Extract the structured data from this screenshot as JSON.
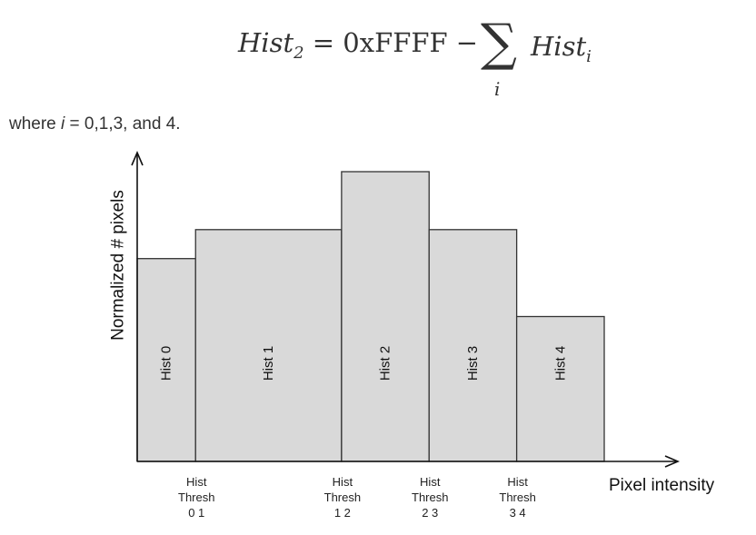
{
  "equation": {
    "lhs": "Hist",
    "lhs_sub": "2",
    "equals": "= 0xFFFF −",
    "sigma": "∑",
    "sigma_sub": "i",
    "rhs": "Hist",
    "rhs_sub": "i"
  },
  "where_text": {
    "prefix": "where ",
    "var": "i",
    "suffix": " = 0,1,3, and 4."
  },
  "chart_data": {
    "type": "bar",
    "ylabel": "Normalized # pixels",
    "xlabel": "Pixel intensity",
    "bars": [
      {
        "label": "Hist 0",
        "x_start": 0,
        "x_end": 1,
        "value": 0.7
      },
      {
        "label": "Hist 1",
        "x_start": 1,
        "x_end": 3.5,
        "value": 0.8
      },
      {
        "label": "Hist 2",
        "x_start": 3.5,
        "x_end": 5,
        "value": 1.0
      },
      {
        "label": "Hist 3",
        "x_start": 5,
        "x_end": 6.5,
        "value": 0.8
      },
      {
        "label": "Hist 4",
        "x_start": 6.5,
        "x_end": 8,
        "value": 0.5
      }
    ],
    "thresholds": [
      {
        "x": 1,
        "lines": [
          "Hist",
          "Thresh",
          "0 1"
        ]
      },
      {
        "x": 3.5,
        "lines": [
          "Hist",
          "Thresh",
          "1 2"
        ]
      },
      {
        "x": 5,
        "lines": [
          "Hist",
          "Thresh",
          "2 3"
        ]
      },
      {
        "x": 6.5,
        "lines": [
          "Hist",
          "Thresh",
          "3 4"
        ]
      }
    ],
    "bar_color": "#d9d9d9",
    "edge_color": "#333333"
  }
}
